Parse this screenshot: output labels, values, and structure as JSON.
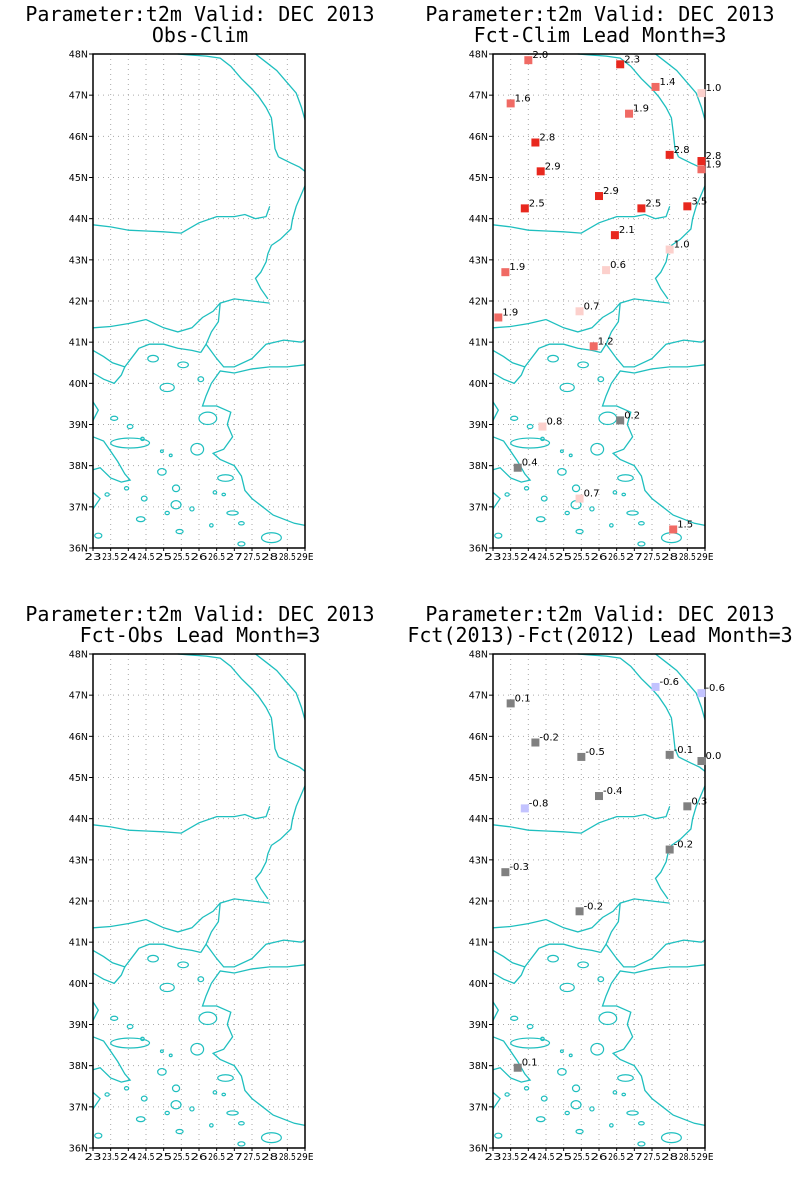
{
  "colors": {
    "coast": "#1fbfbf",
    "grid": "#aaaaaa",
    "red_strong": "#e8281e",
    "red_mid": "#f06a64",
    "red_light": "#f7a8a4",
    "red_pale": "#fcd0cc",
    "grey": "#808080",
    "lavender": "#c3c3ff"
  },
  "axes": {
    "lat_labels": [
      "36N",
      "37N",
      "38N",
      "39N",
      "40N",
      "41N",
      "42N",
      "43N",
      "44N",
      "45N",
      "46N",
      "47N",
      "48N"
    ],
    "lon_labels": [
      "23",
      "23.5",
      "24",
      "24.5",
      "25",
      "25.5",
      "26",
      "26.5",
      "27",
      "27.5",
      "28",
      "28.5",
      "29E"
    ],
    "lat_range": [
      36,
      48
    ],
    "lon_range": [
      23,
      29
    ]
  },
  "panels": [
    {
      "title1": "Parameter:t2m Valid: DEC 2013",
      "title2": "Obs-Clim",
      "points": []
    },
    {
      "title1": "Parameter:t2m Valid: DEC 2013",
      "title2": "Fct-Clim Lead Month=3",
      "points": [
        {
          "lon": 24.0,
          "lat": 47.85,
          "value": "2.0",
          "color": "red_mid"
        },
        {
          "lon": 26.6,
          "lat": 47.75,
          "value": "2.3",
          "color": "red_strong"
        },
        {
          "lon": 27.6,
          "lat": 47.2,
          "value": "1.4",
          "color": "red_mid"
        },
        {
          "lon": 28.9,
          "lat": 47.05,
          "value": "1.0",
          "color": "red_pale"
        },
        {
          "lon": 23.5,
          "lat": 46.8,
          "value": "1.6",
          "color": "red_mid"
        },
        {
          "lon": 26.85,
          "lat": 46.55,
          "value": "1.9",
          "color": "red_mid"
        },
        {
          "lon": 24.2,
          "lat": 45.85,
          "value": "2.8",
          "color": "red_strong"
        },
        {
          "lon": 28.0,
          "lat": 45.55,
          "value": "2.8",
          "color": "red_strong"
        },
        {
          "lon": 28.9,
          "lat": 45.4,
          "value": "2.8",
          "color": "red_strong"
        },
        {
          "lon": 28.9,
          "lat": 45.2,
          "value": "1.9",
          "color": "red_mid"
        },
        {
          "lon": 24.35,
          "lat": 45.15,
          "value": "2.9",
          "color": "red_strong"
        },
        {
          "lon": 26.0,
          "lat": 44.55,
          "value": "2.9",
          "color": "red_strong"
        },
        {
          "lon": 23.9,
          "lat": 44.25,
          "value": "2.5",
          "color": "red_strong"
        },
        {
          "lon": 27.2,
          "lat": 44.25,
          "value": "2.5",
          "color": "red_strong"
        },
        {
          "lon": 28.5,
          "lat": 44.3,
          "value": "3.5",
          "color": "red_strong"
        },
        {
          "lon": 26.45,
          "lat": 43.6,
          "value": "2.1",
          "color": "red_strong"
        },
        {
          "lon": 28.0,
          "lat": 43.25,
          "value": "1.0",
          "color": "red_pale"
        },
        {
          "lon": 23.35,
          "lat": 42.7,
          "value": "1.9",
          "color": "red_mid"
        },
        {
          "lon": 26.2,
          "lat": 42.75,
          "value": "0.6",
          "color": "red_pale"
        },
        {
          "lon": 25.45,
          "lat": 41.75,
          "value": "0.7",
          "color": "red_pale"
        },
        {
          "lon": 23.15,
          "lat": 41.6,
          "value": "1.9",
          "color": "red_mid"
        },
        {
          "lon": 25.85,
          "lat": 40.9,
          "value": "1.2",
          "color": "red_mid"
        },
        {
          "lon": 26.6,
          "lat": 39.1,
          "value": "0.2",
          "color": "grey"
        },
        {
          "lon": 24.4,
          "lat": 38.95,
          "value": "0.8",
          "color": "red_pale"
        },
        {
          "lon": 23.7,
          "lat": 37.95,
          "value": "0.4",
          "color": "grey"
        },
        {
          "lon": 25.45,
          "lat": 37.2,
          "value": "0.7",
          "color": "red_pale"
        },
        {
          "lon": 28.1,
          "lat": 36.45,
          "value": "1.5",
          "color": "red_mid"
        }
      ]
    },
    {
      "title1": "Parameter:t2m Valid: DEC 2013",
      "title2": "Fct-Obs Lead Month=3",
      "points": []
    },
    {
      "title1": "Parameter:t2m Valid: DEC 2013",
      "title2": "Fct(2013)-Fct(2012) Lead Month=3",
      "points": [
        {
          "lon": 27.6,
          "lat": 47.2,
          "value": "-0.6",
          "color": "lavender"
        },
        {
          "lon": 28.9,
          "lat": 47.05,
          "value": "-0.6",
          "color": "lavender"
        },
        {
          "lon": 23.5,
          "lat": 46.8,
          "value": "0.1",
          "color": "grey"
        },
        {
          "lon": 24.2,
          "lat": 45.85,
          "value": "-0.2",
          "color": "grey"
        },
        {
          "lon": 25.5,
          "lat": 45.5,
          "value": "-0.5",
          "color": "grey"
        },
        {
          "lon": 28.0,
          "lat": 45.55,
          "value": "-0.1",
          "color": "grey"
        },
        {
          "lon": 28.9,
          "lat": 45.4,
          "value": "0.0",
          "color": "grey"
        },
        {
          "lon": 26.0,
          "lat": 44.55,
          "value": "-0.4",
          "color": "grey"
        },
        {
          "lon": 23.9,
          "lat": 44.25,
          "value": "-0.8",
          "color": "lavender"
        },
        {
          "lon": 28.5,
          "lat": 44.3,
          "value": "0.3",
          "color": "grey"
        },
        {
          "lon": 28.0,
          "lat": 43.25,
          "value": "-0.2",
          "color": "grey"
        },
        {
          "lon": 23.35,
          "lat": 42.7,
          "value": "-0.3",
          "color": "grey"
        },
        {
          "lon": 25.45,
          "lat": 41.75,
          "value": "-0.2",
          "color": "grey"
        },
        {
          "lon": 23.7,
          "lat": 37.95,
          "value": "0.1",
          "color": "grey"
        }
      ]
    }
  ]
}
